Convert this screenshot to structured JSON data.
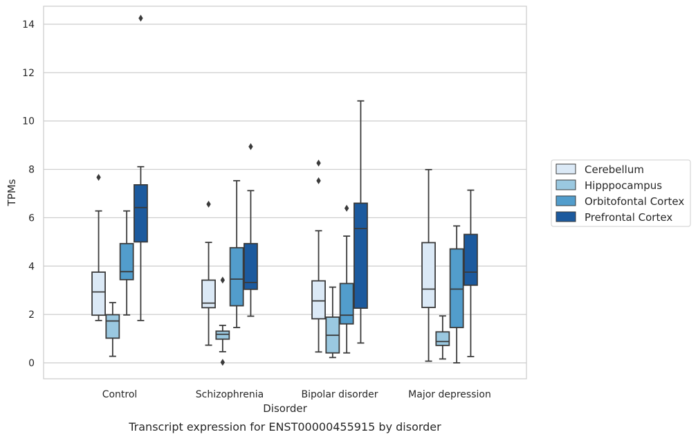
{
  "chart_data": {
    "type": "box",
    "xlabel": "Disorder",
    "ylabel": "TPMs",
    "caption": "Transcript expression for ENST00000455915 by disorder",
    "ylim": [
      -0.7,
      15.0
    ],
    "yticks": [
      0,
      2,
      4,
      6,
      8,
      10,
      12,
      14
    ],
    "grid": "horizontal",
    "legend_position": "right",
    "categories": [
      "Control",
      "Schizophrenia",
      "Bipolar disorder",
      "Major depression"
    ],
    "series": [
      {
        "name": "Cerebellum",
        "color": "#dbe9f6",
        "boxes": [
          {
            "whisker_low": 1.75,
            "q1": 1.97,
            "median": 2.93,
            "q3": 3.75,
            "whisker_high": 6.28,
            "outliers": [
              7.67
            ]
          },
          {
            "whisker_low": 0.73,
            "q1": 2.28,
            "median": 2.47,
            "q3": 3.42,
            "whisker_high": 4.98,
            "outliers": [
              6.56
            ]
          },
          {
            "whisker_low": 0.45,
            "q1": 1.82,
            "median": 2.56,
            "q3": 3.39,
            "whisker_high": 5.46,
            "outliers": [
              7.53,
              8.26
            ]
          },
          {
            "whisker_low": 0.07,
            "q1": 2.29,
            "median": 3.05,
            "q3": 4.97,
            "whisker_high": 7.99,
            "outliers": []
          }
        ]
      },
      {
        "name": "Hipppocampus",
        "color": "#9ac8e0",
        "boxes": [
          {
            "whisker_low": 0.27,
            "q1": 1.02,
            "median": 1.73,
            "q3": 1.99,
            "whisker_high": 2.49,
            "outliers": []
          },
          {
            "whisker_low": 0.46,
            "q1": 0.98,
            "median": 1.18,
            "q3": 1.31,
            "whisker_high": 1.55,
            "outliers": [
              3.42,
              0.02
            ]
          },
          {
            "whisker_low": 0.22,
            "q1": 0.41,
            "median": 1.14,
            "q3": 1.89,
            "whisker_high": 3.13,
            "outliers": []
          },
          {
            "whisker_low": 0.16,
            "q1": 0.72,
            "median": 0.88,
            "q3": 1.28,
            "whisker_high": 1.94,
            "outliers": []
          }
        ]
      },
      {
        "name": "Orbitofontal Cortex",
        "color": "#529dcc",
        "boxes": [
          {
            "whisker_low": 1.98,
            "q1": 3.44,
            "median": 3.77,
            "q3": 4.93,
            "whisker_high": 6.28,
            "outliers": []
          },
          {
            "whisker_low": 1.46,
            "q1": 2.36,
            "median": 3.46,
            "q3": 4.76,
            "whisker_high": 7.53,
            "outliers": []
          },
          {
            "whisker_low": 0.41,
            "q1": 1.61,
            "median": 1.97,
            "q3": 3.28,
            "whisker_high": 5.24,
            "outliers": [
              6.39
            ]
          },
          {
            "whisker_low": 0.0,
            "q1": 1.46,
            "median": 3.05,
            "q3": 4.71,
            "whisker_high": 5.66,
            "outliers": []
          }
        ]
      },
      {
        "name": "Prefrontal Cortex",
        "color": "#1c5a9e",
        "boxes": [
          {
            "whisker_low": 1.75,
            "q1": 5.0,
            "median": 6.42,
            "q3": 7.36,
            "whisker_high": 8.11,
            "outliers": [
              14.25
            ]
          },
          {
            "whisker_low": 1.93,
            "q1": 3.04,
            "median": 3.32,
            "q3": 4.93,
            "whisker_high": 7.12,
            "outliers": [
              8.94
            ]
          },
          {
            "whisker_low": 0.82,
            "q1": 2.26,
            "median": 5.55,
            "q3": 6.6,
            "whisker_high": 10.83,
            "outliers": []
          },
          {
            "whisker_low": 0.26,
            "q1": 3.21,
            "median": 3.75,
            "q3": 5.31,
            "whisker_high": 7.14,
            "outliers": []
          }
        ]
      }
    ]
  },
  "colors": {
    "frame": "#cccccc",
    "grid": "#cccccc",
    "line": "#3a3a3a",
    "text": "#262626"
  }
}
